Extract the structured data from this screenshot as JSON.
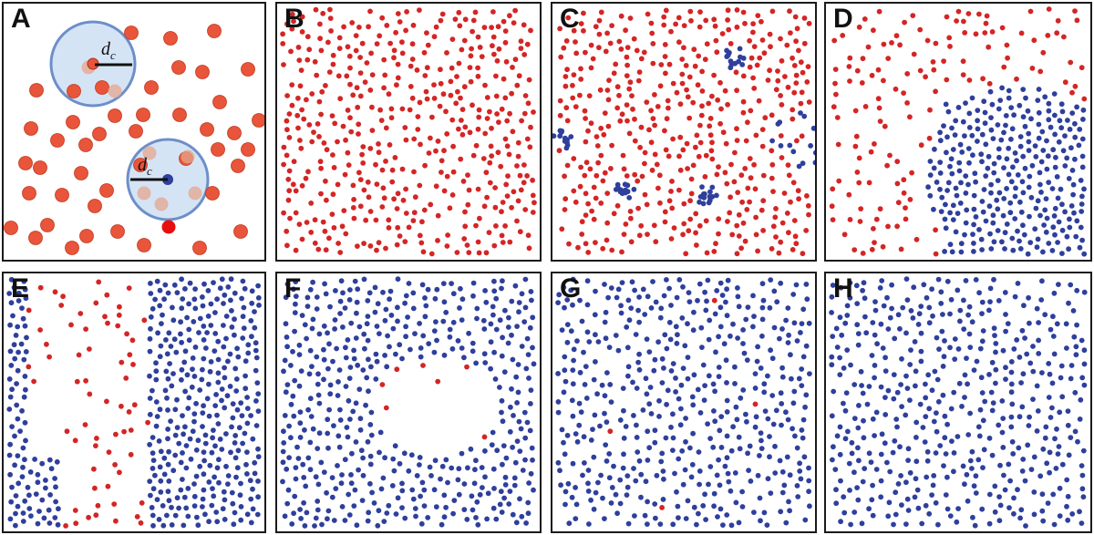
{
  "panels": [
    {
      "label": "A",
      "dc_symbol": "d",
      "dc_subscript": "c"
    },
    {
      "label": "B",
      "red": 450,
      "blue": 0,
      "cluster": "none"
    },
    {
      "label": "C",
      "red": 430,
      "blue": 70,
      "cluster": "small"
    },
    {
      "label": "D",
      "red": 140,
      "blue": 360,
      "cluster": "big"
    },
    {
      "label": "E",
      "red": 65,
      "blue": 430,
      "cluster": "rightside"
    },
    {
      "label": "F",
      "red": 7,
      "blue": 470,
      "cluster": "hole"
    },
    {
      "label": "G",
      "red": 4,
      "blue": 470,
      "cluster": "none"
    },
    {
      "label": "H",
      "red": 0,
      "blue": 470,
      "cluster": "none"
    }
  ],
  "colors": {
    "red": "#d42525",
    "blue": "#2e3f9c",
    "orange": "#e8553a",
    "halo": "#b9d2ee",
    "halo_stroke": "#6d8fc9"
  }
}
